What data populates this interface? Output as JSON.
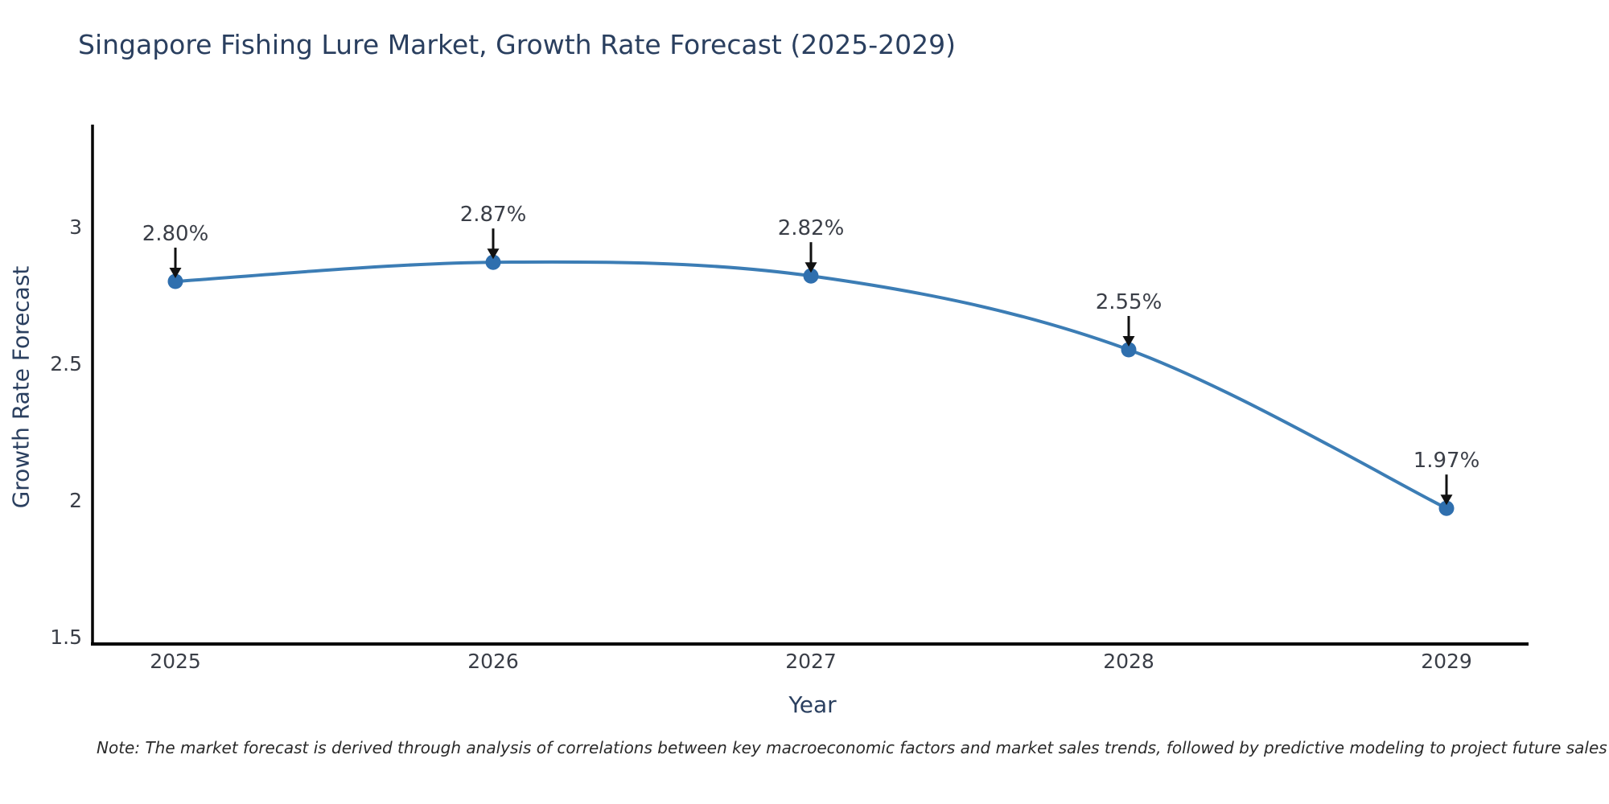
{
  "title": "Singapore Fishing Lure Market, Growth Rate Forecast (2025-2029)",
  "note": "Note: The market forecast is derived through analysis of correlations between key macroeconomic factors and market sales trends, followed by predictive modeling to project future sales",
  "chart_data": {
    "type": "line",
    "title": "Singapore Fishing Lure Market, Growth Rate Forecast (2025-2029)",
    "xlabel": "Year",
    "ylabel": "Growth Rate Forecast",
    "categories": [
      "2025",
      "2026",
      "2027",
      "2028",
      "2029"
    ],
    "series": [
      {
        "name": "Growth Rate Forecast",
        "values": [
          2.8,
          2.87,
          2.82,
          2.55,
          1.97
        ],
        "point_labels": [
          "2.80%",
          "2.87%",
          "2.82%",
          "2.55%",
          "1.97%"
        ]
      }
    ],
    "ylim": [
      1.47,
      3.35
    ],
    "yticks": [
      3,
      2.5,
      2,
      1.5
    ],
    "ytick_labels": [
      "3",
      "2.5",
      "2",
      "1.5"
    ],
    "grid": false,
    "legend_position": "none",
    "line_style": "spline",
    "marker": "circle",
    "annotation_arrows": true,
    "colors": {
      "line": "#3c7db5",
      "marker": "#2f6fae",
      "axis": "#000000",
      "tick_text": "#3a3e47",
      "annotation_text": "#3a3e47",
      "arrow": "#111111",
      "title_text": "#2a3f5f",
      "note_text": "#2a2a2a"
    }
  }
}
